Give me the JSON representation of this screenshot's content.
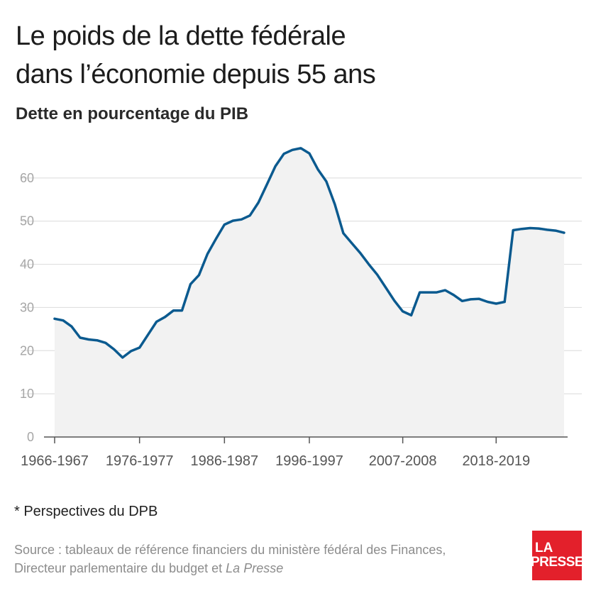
{
  "header": {
    "title_line1": "Le poids de la dette fédérale",
    "title_line2": "dans l’économie depuis 55 ans",
    "subtitle": "Dette en pourcentage du PIB"
  },
  "footer": {
    "note": "* Perspectives du DPB",
    "source_line1": "Source : tableaux de référence financiers du ministère fédéral des Finances,",
    "source_line2_prefix": "Directeur parlementaire du budget et ",
    "source_line2_italic": "La Presse"
  },
  "logo": {
    "line1": "LA",
    "line2": "PRESSE",
    "color": "#e3202b"
  },
  "colors": {
    "line": "#0b5a8f",
    "area": "#f2f2f2",
    "grid": "#e0e0e0",
    "axis": "#555555"
  },
  "chart_data": {
    "type": "area",
    "title": "Le poids de la dette fédérale dans l’économie depuis 55 ans",
    "subtitle": "Dette en pourcentage du PIB",
    "xlabel": "",
    "ylabel": "",
    "ylim": [
      0,
      70
    ],
    "yticks": [
      0,
      10,
      20,
      30,
      40,
      50,
      60
    ],
    "grid": true,
    "x_tick_labels": [
      {
        "label": "1966-1967",
        "index": 0
      },
      {
        "label": "1976-1977",
        "index": 10
      },
      {
        "label": "1986-1987",
        "index": 20
      },
      {
        "label": "1996-1997",
        "index": 30
      },
      {
        "label": "2007-2008",
        "index": 41
      },
      {
        "label": "2018-2019",
        "index": 52
      }
    ],
    "series": [
      {
        "values": [
          27.4,
          27.0,
          25.6,
          23.0,
          22.6,
          22.4,
          21.8,
          20.3,
          18.4,
          19.9,
          20.7,
          23.7,
          26.7,
          27.8,
          29.3,
          29.3,
          35.4,
          37.5,
          42.4,
          45.9,
          49.2,
          50.1,
          50.4,
          51.3,
          54.3,
          58.5,
          62.7,
          65.6,
          66.5,
          66.9,
          65.7,
          62.0,
          59.2,
          53.9,
          47.2,
          44.9,
          42.6,
          40.0,
          37.6,
          34.6,
          31.6,
          29.1,
          28.2,
          33.5,
          33.5,
          33.5,
          34.0,
          32.9,
          31.5,
          31.9,
          32.0,
          31.3,
          30.9,
          31.3,
          47.9,
          48.2,
          48.4,
          48.3,
          48.0,
          47.8,
          47.3
        ]
      }
    ]
  }
}
